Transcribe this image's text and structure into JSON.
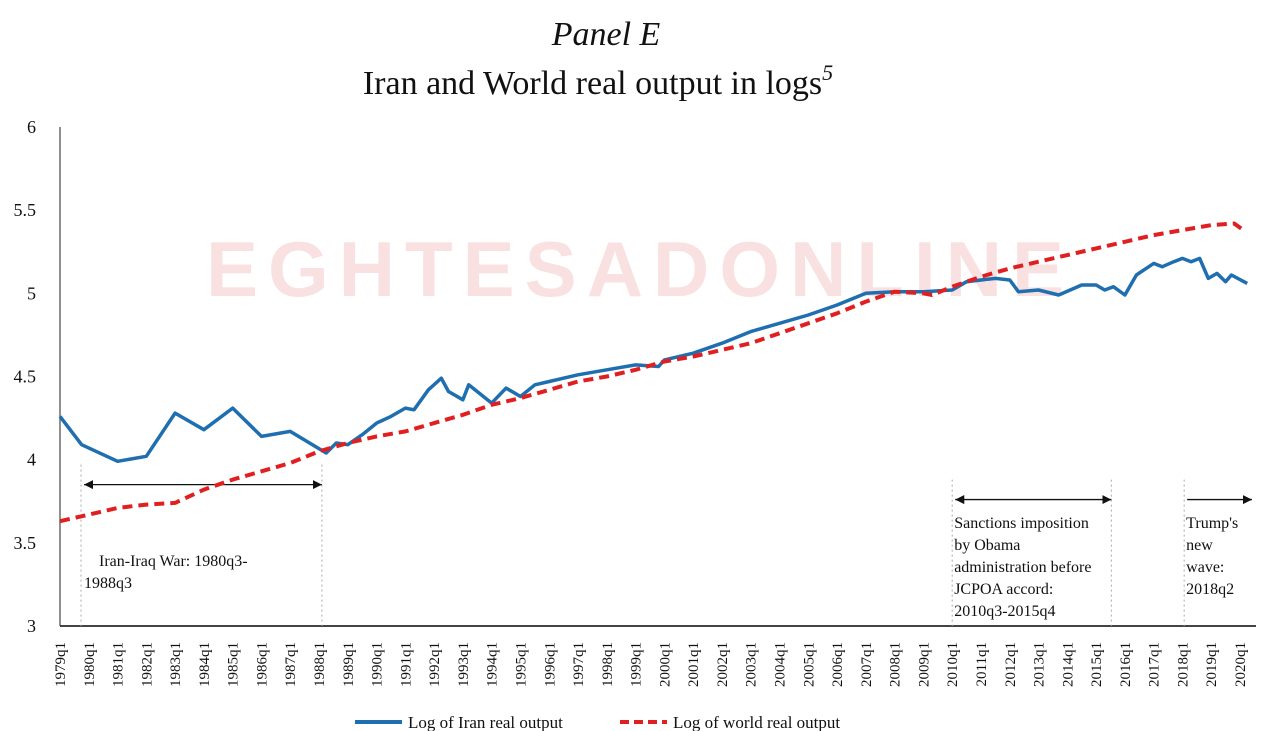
{
  "watermark": {
    "text": "EGHTESADONLINE"
  },
  "chart_data": {
    "type": "line",
    "title": "Panel E",
    "subtitle": "Iran and World real output in logs",
    "subtitle_superscript": "5",
    "xlabel": "",
    "ylabel": "",
    "ylim": [
      3,
      6
    ],
    "xlim": [
      1979.0,
      2020.25
    ],
    "yticks": [
      "6",
      "5.5",
      "5",
      "4.5",
      "4",
      "3.5",
      "3"
    ],
    "ytick_values": [
      6,
      5.5,
      5,
      4.5,
      4,
      3.5,
      3
    ],
    "xtick_labels": [
      "1979q1",
      "1980q1",
      "1981q1",
      "1982q1",
      "1983q1",
      "1984q1",
      "1985q1",
      "1986q1",
      "1987q1",
      "1988q1",
      "1989q1",
      "1990q1",
      "1991q1",
      "1992q1",
      "1993q1",
      "1994q1",
      "1995q1",
      "1996q1",
      "1997q1",
      "1998q1",
      "1999q1",
      "2000q1",
      "2001q1",
      "2002q1",
      "2003q1",
      "2004q1",
      "2005q1",
      "2006q1",
      "2007q1",
      "2008q1",
      "2009q1",
      "2010q1",
      "2011q1",
      "2012q1",
      "2013q1",
      "2014q1",
      "2015q1",
      "2016q1",
      "2017q1",
      "2018q1",
      "2019q1",
      "2020q1"
    ],
    "grid": false,
    "legend_position": "bottom",
    "series": [
      {
        "name": "Log of Iran real output",
        "color": "#1f6fb0",
        "style": "solid",
        "x": [
          1979.0,
          1979.75,
          1981.0,
          1982.0,
          1983.0,
          1984.0,
          1985.0,
          1986.0,
          1987.0,
          1988.25,
          1988.6,
          1989.0,
          1989.5,
          1990.0,
          1990.5,
          1991.0,
          1991.3,
          1991.8,
          1992.25,
          1992.5,
          1993.0,
          1993.2,
          1994.0,
          1994.5,
          1995.0,
          1995.5,
          1996.0,
          1997.0,
          1998.0,
          1999.0,
          1999.8,
          2000.0,
          2001.0,
          2002.0,
          2003.0,
          2004.0,
          2005.0,
          2006.0,
          2007.0,
          2008.0,
          2009.0,
          2010.0,
          2010.5,
          2011.0,
          2011.5,
          2012.0,
          2012.3,
          2013.0,
          2013.7,
          2014.5,
          2015.0,
          2015.3,
          2015.6,
          2016.0,
          2016.4,
          2017.0,
          2017.3,
          2017.7,
          2018.0,
          2018.3,
          2018.6,
          2018.9,
          2019.2,
          2019.5,
          2019.7,
          2020.25
        ],
        "y": [
          4.26,
          4.09,
          3.99,
          4.02,
          4.28,
          4.18,
          4.31,
          4.14,
          4.17,
          4.04,
          4.1,
          4.09,
          4.15,
          4.22,
          4.26,
          4.31,
          4.3,
          4.42,
          4.49,
          4.41,
          4.36,
          4.45,
          4.34,
          4.43,
          4.38,
          4.45,
          4.47,
          4.51,
          4.54,
          4.57,
          4.56,
          4.6,
          4.64,
          4.7,
          4.77,
          4.82,
          4.87,
          4.93,
          5.0,
          5.01,
          5.01,
          5.02,
          5.07,
          5.08,
          5.09,
          5.08,
          5.01,
          5.02,
          4.99,
          5.05,
          5.05,
          5.02,
          5.04,
          4.99,
          5.11,
          5.18,
          5.16,
          5.19,
          5.21,
          5.19,
          5.21,
          5.09,
          5.12,
          5.07,
          5.11,
          5.06
        ]
      },
      {
        "name": "Log of world real output",
        "color": "#e02020",
        "style": "dashed",
        "x": [
          1979.0,
          1980,
          1981,
          1982,
          1983,
          1984,
          1985,
          1986,
          1987,
          1988,
          1989,
          1990,
          1991,
          1992,
          1993,
          1994,
          1995,
          1996,
          1997,
          1998,
          1999,
          2000,
          2001,
          2002,
          2003,
          2004,
          2005,
          2006,
          2007,
          2008,
          2009,
          2009.3,
          2010,
          2011,
          2012,
          2013,
          2014,
          2015,
          2016,
          2017,
          2018,
          2019,
          2019.8,
          2020.2
        ],
        "y": [
          3.63,
          3.67,
          3.71,
          3.73,
          3.74,
          3.82,
          3.88,
          3.93,
          3.98,
          4.05,
          4.1,
          4.14,
          4.17,
          4.22,
          4.27,
          4.33,
          4.37,
          4.42,
          4.47,
          4.5,
          4.54,
          4.59,
          4.62,
          4.66,
          4.7,
          4.76,
          4.82,
          4.88,
          4.95,
          5.01,
          5.0,
          4.99,
          5.04,
          5.1,
          5.15,
          5.19,
          5.23,
          5.27,
          5.31,
          5.35,
          5.38,
          5.41,
          5.42,
          5.37
        ]
      }
    ],
    "annotations": [
      {
        "label_lines": [
          "Iran-Iraq War: 1980q3-",
          "1988q3"
        ],
        "start": 1979.73,
        "end": 1988.1,
        "arrow": "both",
        "arrow_level": 3.85
      },
      {
        "label_lines": [
          "Sanctions imposition",
          "by Obama",
          "administration before",
          "JCPOA accord:",
          "2010q3-2015q4"
        ],
        "start": 2010.0,
        "end": 2015.53,
        "arrow": "both",
        "arrow_level": 3.76
      },
      {
        "label_lines": [
          "Trump's",
          "new",
          "wave:",
          "2018q2"
        ],
        "start": 2018.06,
        "end": 2020.5,
        "arrow": "right",
        "arrow_level": 3.76
      }
    ]
  }
}
